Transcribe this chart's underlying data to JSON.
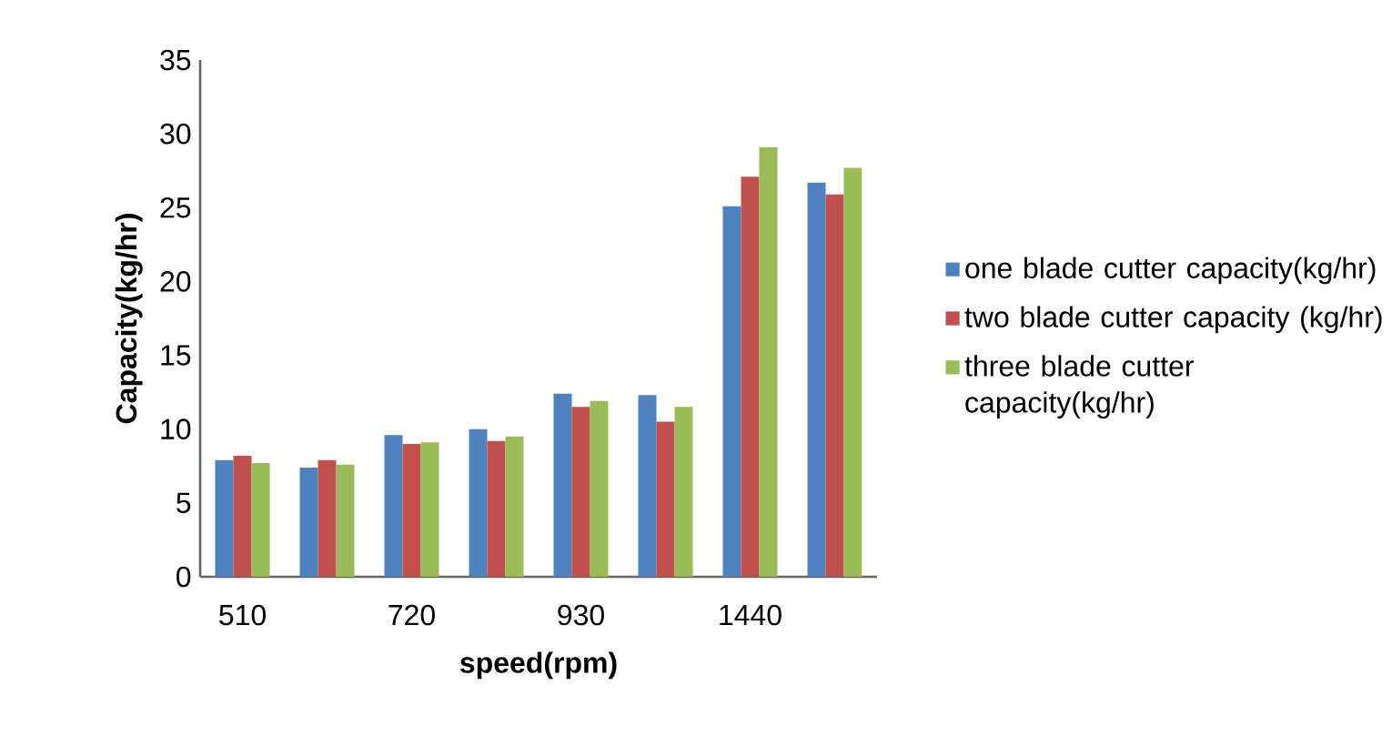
{
  "chart_data": {
    "type": "bar",
    "xlabel": "speed(rpm)",
    "ylabel": "Capacity(kg/hr)",
    "categories": [
      "510",
      null,
      "720",
      null,
      "930",
      null,
      "1440",
      null
    ],
    "series": [
      {
        "name": "one blade cutter capacity(kg/hr)",
        "color": "#4f81bd",
        "values": [
          7.9,
          7.4,
          9.6,
          10.0,
          12.4,
          12.3,
          25.1,
          26.7
        ]
      },
      {
        "name": "two blade cutter capacity (kg/hr)",
        "color": "#c0504d",
        "values": [
          8.2,
          7.9,
          9.0,
          9.2,
          11.5,
          10.5,
          27.1,
          25.9
        ]
      },
      {
        "name": "three blade cutter capacity(kg/hr)",
        "color": "#9bbb59",
        "values": [
          7.7,
          7.6,
          9.1,
          9.5,
          11.9,
          11.5,
          29.1,
          27.7
        ]
      }
    ],
    "ylim": [
      0,
      35
    ],
    "yticks": [
      0,
      5,
      10,
      15,
      20,
      25,
      30,
      35
    ],
    "legend": "right"
  }
}
